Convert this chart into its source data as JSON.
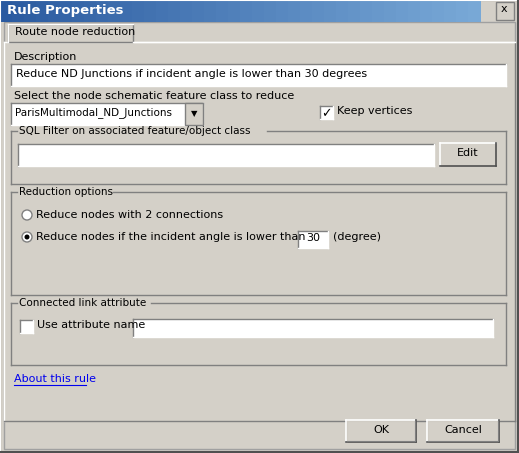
{
  "title": "Rule Properties",
  "tab_label": "Route node reduction",
  "description_label": "Description",
  "description_text": "Reduce ND Junctions if incident angle is lower than 30 degrees",
  "select_label": "Select the node schematic feature class to reduce",
  "dropdown_text": "ParisMultimodal_ND_Junctions",
  "keep_vertices_text": "Keep vertices",
  "sql_filter_label": "SQL Filter on associated feature/object class",
  "edit_button_text": "Edit",
  "reduction_options_label": "Reduction options",
  "radio1_text": "Reduce nodes with 2 connections",
  "radio2_text": "Reduce nodes if the incident angle is lower than",
  "angle_value": "30",
  "degree_text": "(degree)",
  "connected_link_label": "Connected link attribute",
  "checkbox_text": "Use attribute name",
  "about_text": "About this rule",
  "ok_text": "OK",
  "cancel_text": "Cancel",
  "dialog_bg": "#d4d0c8",
  "white": "#ffffff",
  "blue_link": "#0000ee",
  "title_bg": "#2a5aa0",
  "title_bg_light": "#7aaad8"
}
